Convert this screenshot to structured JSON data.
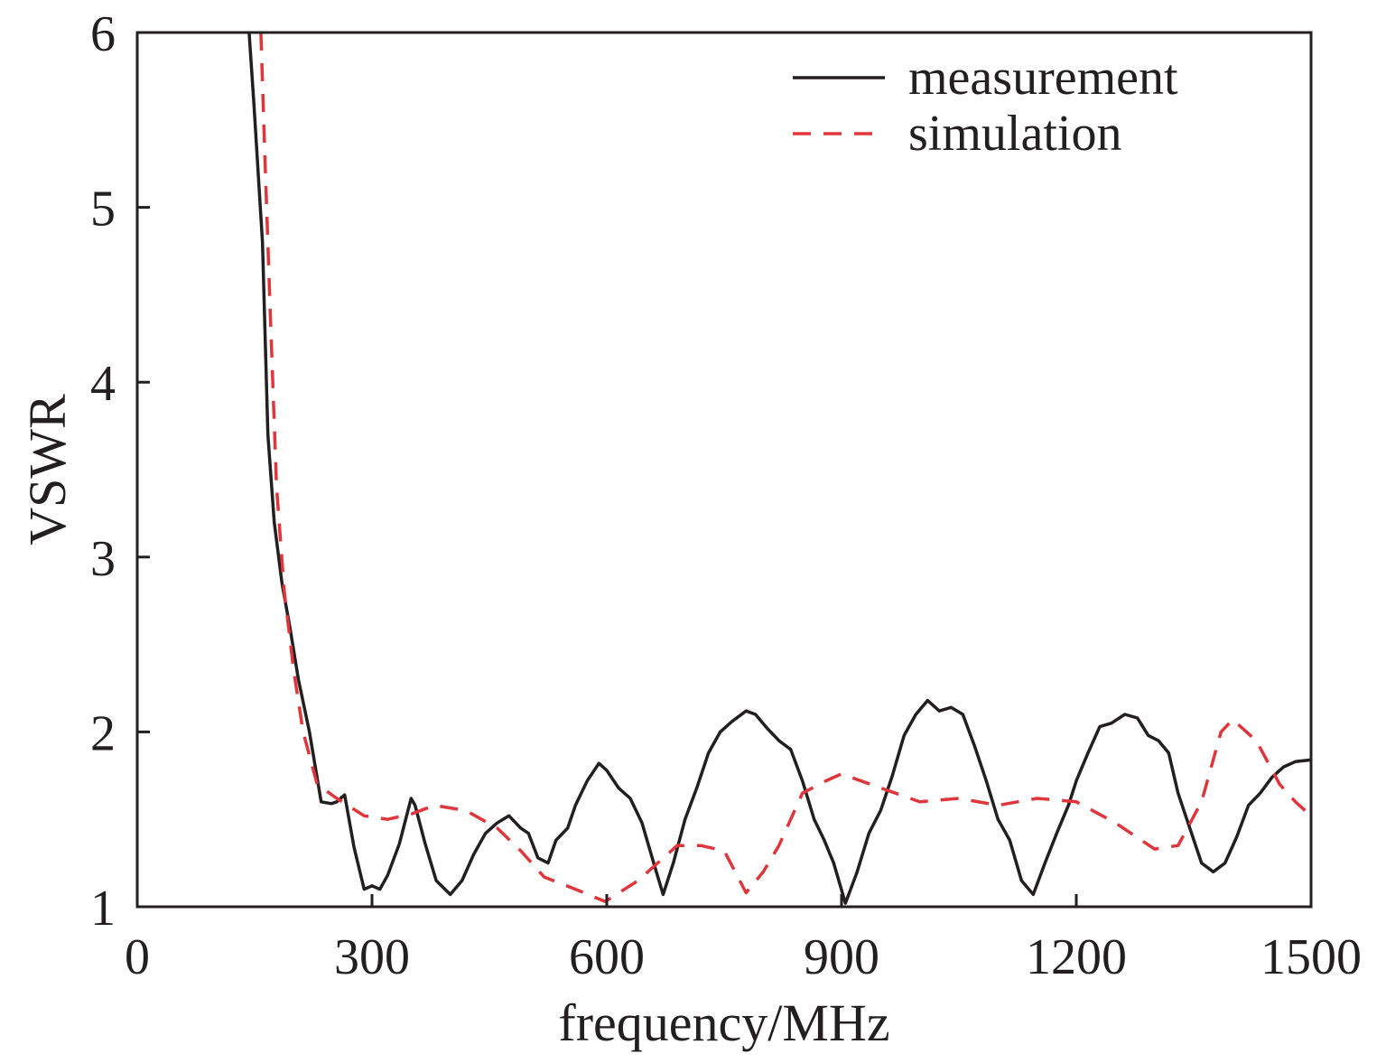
{
  "chart_data": {
    "type": "line",
    "title": "",
    "xlabel": "frequency/MHz",
    "ylabel": "VSWR",
    "xlim": [
      0,
      1500
    ],
    "ylim": [
      1,
      6
    ],
    "xticks": [
      0,
      300,
      600,
      900,
      1200,
      1500
    ],
    "yticks": [
      1,
      2,
      3,
      4,
      5,
      6
    ],
    "grid": false,
    "legend_position": "top-right",
    "series": [
      {
        "name": "measurement",
        "color": "#231f20",
        "dash": "solid",
        "x": [
          143,
          149,
          160,
          167,
          175,
          185,
          195,
          206,
          220,
          235,
          248,
          255,
          265,
          277,
          290,
          300,
          310,
          320,
          335,
          350,
          355,
          368,
          382,
          400,
          415,
          430,
          445,
          460,
          475,
          490,
          500,
          512,
          525,
          535,
          550,
          560,
          575,
          590,
          600,
          615,
          630,
          645,
          660,
          672,
          685,
          700,
          715,
          730,
          745,
          760,
          778,
          790,
          805,
          820,
          835,
          850,
          865,
          878,
          890,
          905,
          920,
          935,
          950,
          965,
          980,
          995,
          1010,
          1025,
          1040,
          1055,
          1070,
          1085,
          1100,
          1115,
          1130,
          1145,
          1160,
          1175,
          1190,
          1200,
          1215,
          1230,
          1245,
          1262,
          1278,
          1292,
          1305,
          1318,
          1330,
          1345,
          1360,
          1375,
          1390,
          1405,
          1420,
          1435,
          1450,
          1465,
          1480,
          1500
        ],
        "y": [
          6.0,
          5.6,
          4.8,
          3.7,
          3.2,
          2.85,
          2.6,
          2.3,
          2.0,
          1.6,
          1.59,
          1.6,
          1.64,
          1.34,
          1.1,
          1.12,
          1.1,
          1.18,
          1.36,
          1.62,
          1.58,
          1.36,
          1.15,
          1.07,
          1.15,
          1.3,
          1.42,
          1.48,
          1.52,
          1.45,
          1.42,
          1.28,
          1.25,
          1.38,
          1.45,
          1.58,
          1.72,
          1.82,
          1.78,
          1.68,
          1.62,
          1.48,
          1.25,
          1.07,
          1.25,
          1.5,
          1.68,
          1.88,
          2.0,
          2.06,
          2.12,
          2.1,
          2.02,
          1.95,
          1.9,
          1.72,
          1.5,
          1.38,
          1.25,
          1.02,
          1.2,
          1.42,
          1.55,
          1.75,
          1.98,
          2.1,
          2.18,
          2.12,
          2.14,
          2.1,
          1.92,
          1.72,
          1.5,
          1.38,
          1.15,
          1.07,
          1.25,
          1.42,
          1.58,
          1.72,
          1.88,
          2.03,
          2.05,
          2.1,
          2.08,
          1.98,
          1.95,
          1.88,
          1.65,
          1.45,
          1.25,
          1.2,
          1.25,
          1.4,
          1.58,
          1.65,
          1.74,
          1.8,
          1.83,
          1.84
        ]
      },
      {
        "name": "simulation",
        "color": "#e0363b",
        "dash": "dashed",
        "x": [
          158,
          163,
          170,
          178,
          188,
          200,
          212,
          230,
          255,
          290,
          320,
          350,
          380,
          420,
          460,
          490,
          520,
          560,
          598,
          640,
          690,
          720,
          750,
          778,
          800,
          820,
          850,
          880,
          900,
          950,
          1000,
          1050,
          1100,
          1150,
          1200,
          1250,
          1300,
          1330,
          1360,
          1385,
          1400,
          1430,
          1460,
          1480,
          1500
        ],
        "y": [
          6.0,
          5.3,
          4.4,
          3.4,
          2.8,
          2.35,
          2.0,
          1.7,
          1.62,
          1.52,
          1.5,
          1.53,
          1.58,
          1.55,
          1.45,
          1.32,
          1.17,
          1.1,
          1.03,
          1.15,
          1.35,
          1.35,
          1.32,
          1.08,
          1.2,
          1.35,
          1.65,
          1.72,
          1.76,
          1.68,
          1.6,
          1.62,
          1.58,
          1.62,
          1.6,
          1.48,
          1.33,
          1.35,
          1.6,
          2.0,
          2.07,
          1.95,
          1.7,
          1.6,
          1.52
        ]
      }
    ]
  }
}
